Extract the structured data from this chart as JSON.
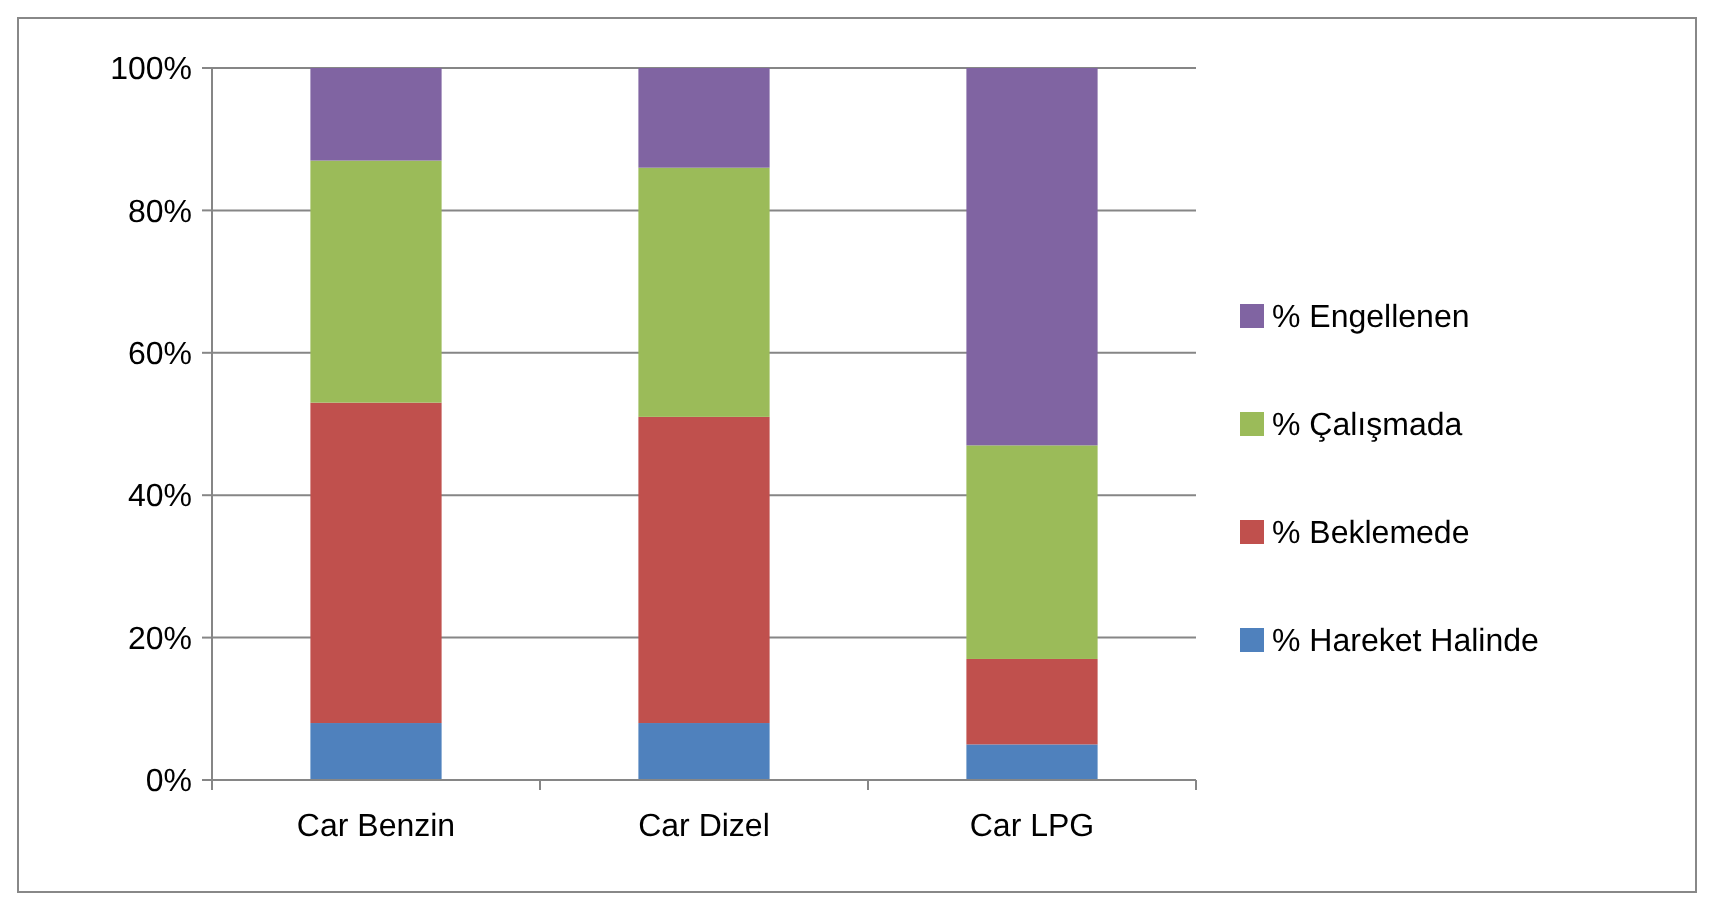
{
  "chart_data": {
    "type": "bar",
    "stacked": true,
    "categories": [
      "Car Benzin",
      "Car Dizel",
      "Car LPG"
    ],
    "series": [
      {
        "name": "% Hareket Halinde",
        "color": "#4f81bd",
        "values": [
          8,
          8,
          5
        ]
      },
      {
        "name": "% Beklemede",
        "color": "#c0504d",
        "values": [
          45,
          43,
          12
        ]
      },
      {
        "name": "% Çalışmada",
        "color": "#9bbb59",
        "values": [
          34,
          35,
          30
        ]
      },
      {
        "name": "% Engellenen",
        "color": "#8064a2",
        "values": [
          13,
          14,
          53
        ]
      }
    ],
    "ylim": [
      0,
      100
    ],
    "yticks": [
      {
        "value": 0,
        "label": "0%"
      },
      {
        "value": 20,
        "label": "20%"
      },
      {
        "value": 40,
        "label": "40%"
      },
      {
        "value": 60,
        "label": "60%"
      },
      {
        "value": 80,
        "label": "80%"
      },
      {
        "value": 100,
        "label": "100%"
      }
    ],
    "grid": "y",
    "legend": "right"
  }
}
